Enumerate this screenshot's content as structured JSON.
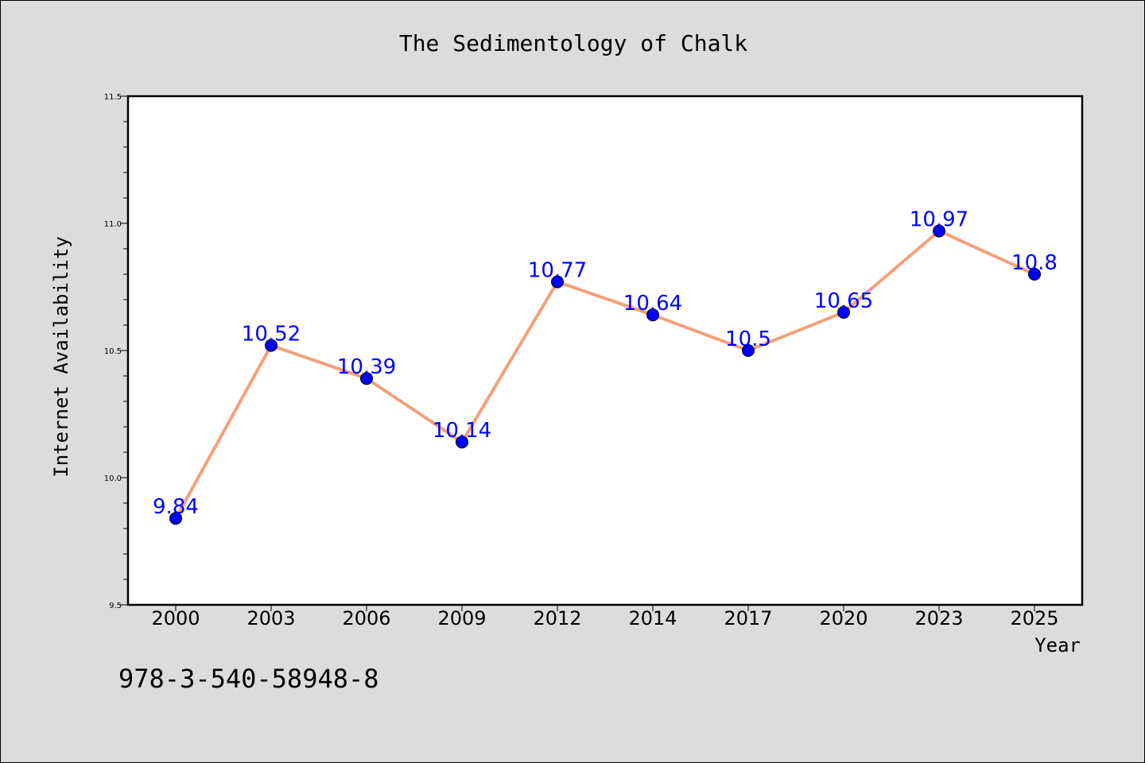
{
  "chart_data": {
    "type": "line",
    "title": "The Sedimentology of Chalk",
    "xlabel": "Year",
    "ylabel": "Internet Availability",
    "categories": [
      "2000",
      "2003",
      "2006",
      "2009",
      "2012",
      "2014",
      "2017",
      "2020",
      "2023",
      "2025"
    ],
    "series": [
      {
        "values": [
          9.84,
          10.52,
          10.39,
          10.14,
          10.77,
          10.64,
          10.5,
          10.65,
          10.97,
          10.8
        ],
        "labels": [
          "9.84",
          "10.52",
          "10.39",
          "10.14",
          "10.77",
          "10.64",
          "10.5",
          "10.65",
          "10.97",
          "10.8"
        ]
      }
    ],
    "ylim": [
      9.5,
      11.5
    ],
    "yticks": [
      "9.5",
      "10.0",
      "10.5",
      "11.0",
      "11.5"
    ],
    "grid": false,
    "colors": {
      "line": "#f4a07a",
      "marker": "#0000ff",
      "label": "#0000ff",
      "plot_bg": "#ffffff",
      "figure_bg": "#dcdcdc"
    }
  },
  "footer": {
    "isbn": "978-3-540-58948-8"
  }
}
